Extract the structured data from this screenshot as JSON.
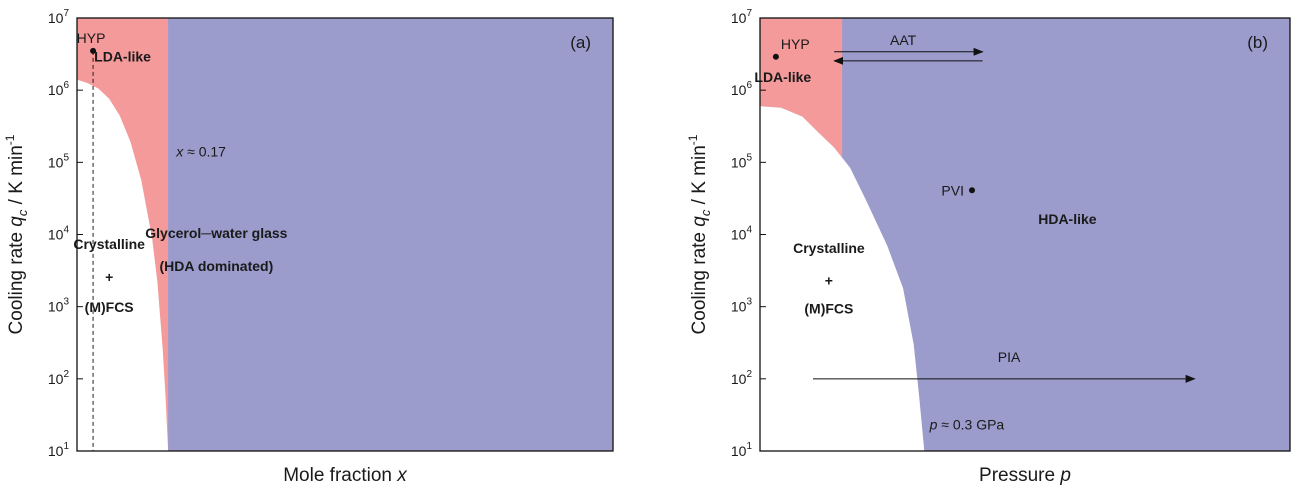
{
  "chart_data": [
    {
      "type": "area",
      "panel_label": "(a)",
      "xlabel": "Mole fraction x",
      "ylabel": "Cooling rate q_c / K min^-1",
      "yscale": "log",
      "ylim": [
        10,
        10000000
      ],
      "y_ticks": [
        {
          "value": 10,
          "base": "10",
          "exp": "1"
        },
        {
          "value": 100,
          "base": "10",
          "exp": "2"
        },
        {
          "value": 1000,
          "base": "10",
          "exp": "3"
        },
        {
          "value": 10000,
          "base": "10",
          "exp": "4"
        },
        {
          "value": 100000,
          "base": "10",
          "exp": "5"
        },
        {
          "value": 1000000,
          "base": "10",
          "exp": "6"
        },
        {
          "value": 10000000,
          "base": "10",
          "exp": "7"
        }
      ],
      "xlim": [
        0,
        1
      ],
      "x_ticks_shown": false,
      "colors": {
        "crystalline": "#ffffff",
        "lda": "#f49a9a",
        "hda": "#9b9bcc"
      },
      "boundary_x": 0.17,
      "crystallization_boundary": {
        "x": [
          0.0,
          0.02,
          0.04,
          0.06,
          0.08,
          0.1,
          0.12,
          0.14,
          0.15,
          0.16,
          0.165,
          0.17
        ],
        "y": [
          1400000,
          1250000,
          1050000,
          760000,
          440000,
          190000,
          56000,
          9000,
          2200,
          250,
          60,
          10
        ]
      },
      "regions": [
        {
          "label": "LDA-like",
          "x": 0.085,
          "y": 2500000
        },
        {
          "label": "Crystalline",
          "x": 0.06,
          "y": 6300
        },
        {
          "label": "+",
          "x": 0.06,
          "y": 2200
        },
        {
          "label": "(M)FCS",
          "x": 0.06,
          "y": 850
        },
        {
          "label": "Glycerol─water glass",
          "x": 0.26,
          "y": 9000
        },
        {
          "label": "(HDA dominated)",
          "x": 0.26,
          "y": 3100
        }
      ],
      "annotations": [
        {
          "label": "x ≈ 0.17",
          "x": 0.174,
          "y": 120000
        }
      ],
      "points": [
        {
          "label": "HYP",
          "x": 0.03,
          "y": 3500000
        }
      ],
      "vertical_dashed_line_x": 0.03
    },
    {
      "type": "area",
      "panel_label": "(b)",
      "xlabel": "Pressure p",
      "ylabel": "Cooling rate q_c / K min^-1",
      "yscale": "log",
      "ylim": [
        10,
        10000000
      ],
      "y_ticks": [
        {
          "value": 10,
          "base": "10",
          "exp": "1"
        },
        {
          "value": 100,
          "base": "10",
          "exp": "2"
        },
        {
          "value": 1000,
          "base": "10",
          "exp": "3"
        },
        {
          "value": 10000,
          "base": "10",
          "exp": "4"
        },
        {
          "value": 100000,
          "base": "10",
          "exp": "5"
        },
        {
          "value": 1000000,
          "base": "10",
          "exp": "6"
        },
        {
          "value": 10000000,
          "base": "10",
          "exp": "7"
        }
      ],
      "xlim": [
        0,
        1
      ],
      "x_ticks_shown": false,
      "colors": {
        "crystalline": "#ffffff",
        "lda": "#f49a9a",
        "hda": "#9b9bcc"
      },
      "lda_boundary_x": 0.155,
      "crystallization_boundary": {
        "x": [
          0.0,
          0.04,
          0.08,
          0.11,
          0.14,
          0.17,
          0.2,
          0.24,
          0.27,
          0.29,
          0.3,
          0.31
        ],
        "y": [
          600000,
          570000,
          430000,
          260000,
          160000,
          84000,
          30000,
          7000,
          1800,
          300,
          60,
          10
        ]
      },
      "regions": [
        {
          "label": "LDA-like",
          "x": 0.043,
          "y": 1300000
        },
        {
          "label": "HDA-like",
          "x": 0.58,
          "y": 14000
        },
        {
          "label": "Crystalline",
          "x": 0.13,
          "y": 5500
        },
        {
          "label": "+",
          "x": 0.13,
          "y": 1950
        },
        {
          "label": "(M)FCS",
          "x": 0.13,
          "y": 800
        }
      ],
      "annotations": [
        {
          "label": "AAT",
          "x": 0.27,
          "y": 4800000
        },
        {
          "label": "PIA",
          "x": 0.47,
          "y": 140000
        },
        {
          "label": "PVI",
          "x": 0.36,
          "y": 45000
        },
        {
          "label": "p ≈ 0.3 GPa",
          "x": 0.32,
          "y": 18000
        }
      ],
      "points": [
        {
          "label": "HYP",
          "x": 0.03,
          "y": 2900000
        },
        {
          "label": "PVI",
          "x": 0.4,
          "y": 41000
        }
      ],
      "arrows": [
        {
          "label": "AAT",
          "from": [
            0.14,
            3400000
          ],
          "to": [
            0.42,
            3400000
          ]
        },
        {
          "label": "AAT",
          "from": [
            0.42,
            2550000
          ],
          "to": [
            0.14,
            2550000
          ]
        },
        {
          "label": "PIA",
          "from": [
            0.1,
            100
          ],
          "to": [
            0.82,
            100
          ]
        }
      ]
    }
  ]
}
